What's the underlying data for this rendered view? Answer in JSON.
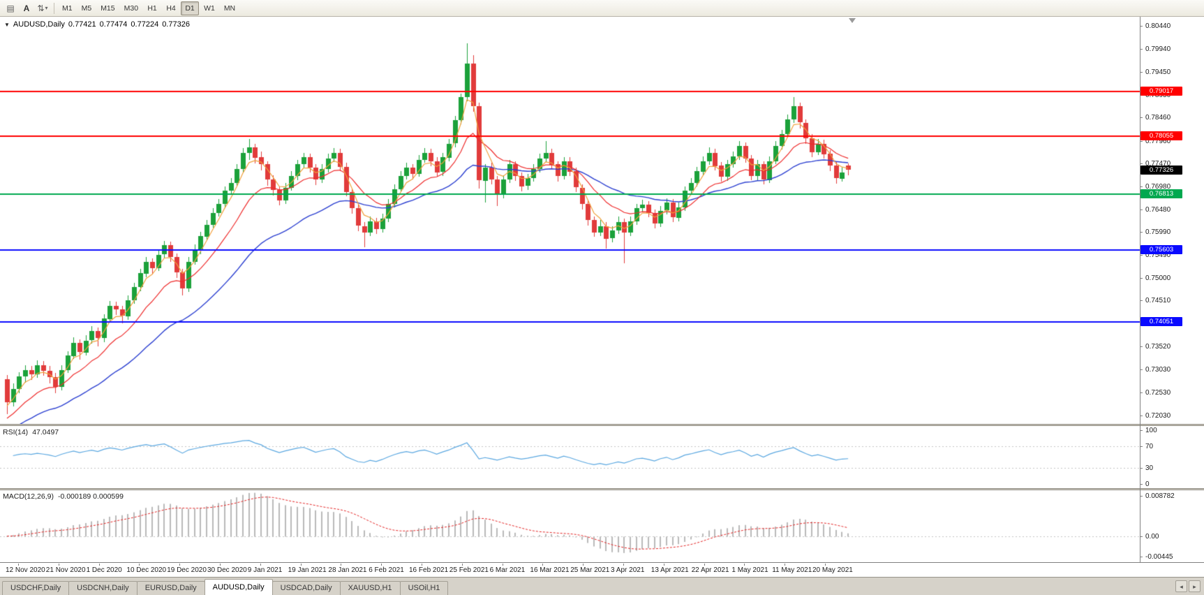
{
  "toolbar": {
    "tools": [
      {
        "name": "windows-tile-icon",
        "glyph": "▤"
      },
      {
        "name": "text-annotation-icon",
        "glyph": "A",
        "letter": true
      },
      {
        "name": "scale-adjust-icon",
        "glyph": "⇅",
        "caret": "▾"
      }
    ],
    "timeframes": [
      "M1",
      "M5",
      "M15",
      "M30",
      "H1",
      "H4",
      "D1",
      "W1",
      "MN"
    ],
    "active_timeframe": "D1"
  },
  "legend": {
    "collapse_icon": "▼",
    "symbol": "AUDUSD,Daily",
    "open": "0.77421",
    "high": "0.77474",
    "low": "0.77224",
    "close": "0.77326"
  },
  "rsi_header": {
    "name": "RSI(14)",
    "value": "47.0497"
  },
  "macd_header": {
    "name": "MACD(12,26,9)",
    "values": "-0.000189 0.000599"
  },
  "tabs": {
    "items": [
      {
        "label": "USDCHF,Daily",
        "active": false
      },
      {
        "label": "USDCNH,Daily",
        "active": false
      },
      {
        "label": "EURUSD,Daily",
        "active": false
      },
      {
        "label": "AUDUSD,Daily",
        "active": true
      },
      {
        "label": "USDCAD,Daily",
        "active": false
      },
      {
        "label": "XAUUSD,H1",
        "active": false
      },
      {
        "label": "USOil,H1",
        "active": false
      }
    ],
    "scroll_left_icon": "◂",
    "scroll_right_icon": "▸"
  },
  "chart_data": {
    "type": "candlestick",
    "symbol": "AUDUSD",
    "timeframe": "Daily",
    "price_top": 0.8044,
    "price_bottom": 0.7203,
    "price_axis_labels": [
      "0.80440",
      "0.79940",
      "0.79450",
      "0.78950",
      "0.78460",
      "0.77960",
      "0.77470",
      "0.76980",
      "0.76480",
      "0.75990",
      "0.75490",
      "0.75000",
      "0.74510",
      "0.74020",
      "0.73520",
      "0.73030",
      "0.72530",
      "0.72030"
    ],
    "date_labels": [
      "12 Nov 2020",
      "21 Nov 2020",
      "1 Dec 2020",
      "10 Dec 2020",
      "19 Dec 2020",
      "30 Dec 2020",
      "9 Jan 2021",
      "19 Jan 2021",
      "28 Jan 2021",
      "6 Feb 2021",
      "16 Feb 2021",
      "25 Feb 2021",
      "6 Mar 2021",
      "16 Mar 2021",
      "25 Mar 2021",
      "3 Apr 2021",
      "13 Apr 2021",
      "22 Apr 2021",
      "1 May 2021",
      "11 May 2021",
      "20 May 2021"
    ],
    "colors": {
      "bull": "#1ba13a",
      "bear": "#e13b3b"
    },
    "moving_averages": [
      {
        "name": "ema-fast",
        "period": 4,
        "color": "#f0a03a"
      },
      {
        "name": "ema-medium",
        "period": 12,
        "color": "#ee2b2b"
      },
      {
        "name": "ema-slow",
        "period": 30,
        "color": "#2b3fd0"
      }
    ],
    "hlines": [
      {
        "value": 0.79017,
        "label": "0.79017",
        "color": "#ff0000",
        "width": 2
      },
      {
        "value": 0.78055,
        "label": "0.78055",
        "color": "#ff0000",
        "width": 2
      },
      {
        "value": 0.76813,
        "label": "0.76813",
        "color": "#00a84f",
        "width": 2
      },
      {
        "value": 0.75603,
        "label": "0.75603",
        "color": "#0a0aff",
        "width": 2
      },
      {
        "value": 0.74051,
        "label": "0.74051",
        "color": "#0a0aff",
        "width": 2
      }
    ],
    "current_price": {
      "value": 0.77326,
      "label": "0.77326",
      "color": "#000000"
    },
    "rsi": {
      "period": 14,
      "levels": [
        100,
        70,
        30,
        0
      ],
      "color": "#5aa7e0",
      "level_line_color": "#c3c3c3"
    },
    "macd": {
      "fast": 12,
      "slow": 26,
      "signal": 9,
      "axis_max": 0.008782,
      "axis_min": -0.00445,
      "axis_labels": [
        {
          "text": "0.008782",
          "value": 0.008782
        },
        {
          "text": "0.00",
          "value": 0
        },
        {
          "text": "-0.00445",
          "value": -0.00445
        }
      ],
      "hist_color": "#b9b9b9",
      "signal_color": "#e32222",
      "zero_line_color": "#c3c3c3"
    },
    "candles": [
      [
        0.7282,
        0.7291,
        0.7206,
        0.7232
      ],
      [
        0.7232,
        0.7272,
        0.7222,
        0.726
      ],
      [
        0.726,
        0.7297,
        0.7252,
        0.7287
      ],
      [
        0.7287,
        0.7312,
        0.7275,
        0.7301
      ],
      [
        0.7301,
        0.731,
        0.728,
        0.7292
      ],
      [
        0.7292,
        0.7322,
        0.7285,
        0.7312
      ],
      [
        0.7312,
        0.732,
        0.7288,
        0.73
      ],
      [
        0.73,
        0.731,
        0.7272,
        0.7286
      ],
      [
        0.7286,
        0.7295,
        0.7252,
        0.7265
      ],
      [
        0.7265,
        0.7312,
        0.7258,
        0.7301
      ],
      [
        0.7301,
        0.7342,
        0.7295,
        0.7332
      ],
      [
        0.7332,
        0.7372,
        0.7325,
        0.736
      ],
      [
        0.736,
        0.7368,
        0.7325,
        0.734
      ],
      [
        0.734,
        0.7376,
        0.7332,
        0.7365
      ],
      [
        0.7365,
        0.7396,
        0.7358,
        0.7385
      ],
      [
        0.7385,
        0.7393,
        0.7352,
        0.737
      ],
      [
        0.737,
        0.7422,
        0.7362,
        0.7412
      ],
      [
        0.7412,
        0.745,
        0.7405,
        0.744
      ],
      [
        0.744,
        0.7449,
        0.742,
        0.7432
      ],
      [
        0.7432,
        0.744,
        0.7402,
        0.7418
      ],
      [
        0.7418,
        0.7462,
        0.741,
        0.7452
      ],
      [
        0.7452,
        0.749,
        0.7445,
        0.748
      ],
      [
        0.748,
        0.752,
        0.7472,
        0.751
      ],
      [
        0.751,
        0.7545,
        0.7502,
        0.7535
      ],
      [
        0.7535,
        0.7542,
        0.7508,
        0.7522
      ],
      [
        0.7522,
        0.756,
        0.7515,
        0.755
      ],
      [
        0.755,
        0.758,
        0.7542,
        0.757
      ],
      [
        0.757,
        0.7578,
        0.7535,
        0.7545
      ],
      [
        0.7545,
        0.7552,
        0.75,
        0.7512
      ],
      [
        0.7512,
        0.752,
        0.7462,
        0.7478
      ],
      [
        0.7478,
        0.7545,
        0.747,
        0.7535
      ],
      [
        0.7535,
        0.7572,
        0.7528,
        0.756
      ],
      [
        0.756,
        0.76,
        0.7552,
        0.759
      ],
      [
        0.759,
        0.7625,
        0.7582,
        0.7615
      ],
      [
        0.7615,
        0.765,
        0.7608,
        0.764
      ],
      [
        0.764,
        0.767,
        0.7632,
        0.766
      ],
      [
        0.766,
        0.7698,
        0.7652,
        0.7688
      ],
      [
        0.7688,
        0.7715,
        0.768,
        0.7705
      ],
      [
        0.7705,
        0.7745,
        0.7698,
        0.7735
      ],
      [
        0.7735,
        0.778,
        0.7728,
        0.777
      ],
      [
        0.777,
        0.78,
        0.7755,
        0.7782
      ],
      [
        0.7782,
        0.779,
        0.7748,
        0.776
      ],
      [
        0.776,
        0.7772,
        0.7732,
        0.7745
      ],
      [
        0.7745,
        0.7752,
        0.77,
        0.7712
      ],
      [
        0.7712,
        0.7722,
        0.7678,
        0.769
      ],
      [
        0.769,
        0.7698,
        0.7658,
        0.7668
      ],
      [
        0.7668,
        0.7705,
        0.766,
        0.7695
      ],
      [
        0.7695,
        0.773,
        0.7688,
        0.772
      ],
      [
        0.772,
        0.7755,
        0.7712,
        0.7745
      ],
      [
        0.7745,
        0.777,
        0.7738,
        0.776
      ],
      [
        0.776,
        0.7768,
        0.7728,
        0.7738
      ],
      [
        0.7738,
        0.7745,
        0.77,
        0.7712
      ],
      [
        0.7712,
        0.7745,
        0.7705,
        0.7735
      ],
      [
        0.7735,
        0.7768,
        0.7728,
        0.7758
      ],
      [
        0.7758,
        0.778,
        0.775,
        0.777
      ],
      [
        0.777,
        0.7778,
        0.773,
        0.774
      ],
      [
        0.774,
        0.7748,
        0.7675,
        0.7685
      ],
      [
        0.7685,
        0.7692,
        0.764,
        0.765
      ],
      [
        0.765,
        0.7658,
        0.76,
        0.7612
      ],
      [
        0.7612,
        0.762,
        0.7565,
        0.7598
      ],
      [
        0.7598,
        0.7632,
        0.759,
        0.7622
      ],
      [
        0.7622,
        0.763,
        0.7595,
        0.7605
      ],
      [
        0.7605,
        0.7638,
        0.7598,
        0.7628
      ],
      [
        0.7628,
        0.767,
        0.762,
        0.766
      ],
      [
        0.766,
        0.7702,
        0.7652,
        0.7692
      ],
      [
        0.7692,
        0.773,
        0.7685,
        0.772
      ],
      [
        0.772,
        0.7748,
        0.7712,
        0.7738
      ],
      [
        0.7738,
        0.7745,
        0.7712,
        0.7725
      ],
      [
        0.7725,
        0.7765,
        0.7718,
        0.7755
      ],
      [
        0.7755,
        0.778,
        0.7748,
        0.777
      ],
      [
        0.777,
        0.7778,
        0.774,
        0.7752
      ],
      [
        0.7752,
        0.776,
        0.7718,
        0.7728
      ],
      [
        0.7728,
        0.777,
        0.772,
        0.776
      ],
      [
        0.776,
        0.78,
        0.7752,
        0.779
      ],
      [
        0.779,
        0.785,
        0.7782,
        0.784
      ],
      [
        0.784,
        0.7898,
        0.7832,
        0.789
      ],
      [
        0.789,
        0.8007,
        0.7882,
        0.7962
      ],
      [
        0.7962,
        0.798,
        0.7858,
        0.787
      ],
      [
        0.787,
        0.7878,
        0.7692,
        0.771
      ],
      [
        0.771,
        0.7745,
        0.7662,
        0.7738
      ],
      [
        0.7738,
        0.7748,
        0.7702,
        0.7712
      ],
      [
        0.7712,
        0.772,
        0.7655,
        0.768
      ],
      [
        0.768,
        0.7722,
        0.7672,
        0.7712
      ],
      [
        0.7712,
        0.7755,
        0.7705,
        0.7745
      ],
      [
        0.7745,
        0.7752,
        0.771,
        0.772
      ],
      [
        0.772,
        0.7728,
        0.7688,
        0.7698
      ],
      [
        0.7698,
        0.7725,
        0.769,
        0.7715
      ],
      [
        0.7715,
        0.7745,
        0.7708,
        0.7735
      ],
      [
        0.7735,
        0.7768,
        0.7728,
        0.7758
      ],
      [
        0.7758,
        0.7795,
        0.775,
        0.777
      ],
      [
        0.777,
        0.7778,
        0.7735,
        0.7745
      ],
      [
        0.7745,
        0.7752,
        0.7708,
        0.772
      ],
      [
        0.772,
        0.776,
        0.7712,
        0.7752
      ],
      [
        0.7752,
        0.776,
        0.772,
        0.773
      ],
      [
        0.773,
        0.7738,
        0.7685,
        0.7695
      ],
      [
        0.7695,
        0.7702,
        0.7648,
        0.766
      ],
      [
        0.766,
        0.7668,
        0.7612,
        0.7625
      ],
      [
        0.7625,
        0.7632,
        0.7588,
        0.7598
      ],
      [
        0.7598,
        0.7625,
        0.759,
        0.7612
      ],
      [
        0.7612,
        0.762,
        0.7562,
        0.7585
      ],
      [
        0.7585,
        0.7612,
        0.7578,
        0.7602
      ],
      [
        0.7602,
        0.7632,
        0.7595,
        0.762
      ],
      [
        0.762,
        0.7628,
        0.7532,
        0.7598
      ],
      [
        0.7598,
        0.7632,
        0.759,
        0.7622
      ],
      [
        0.7622,
        0.766,
        0.7615,
        0.765
      ],
      [
        0.765,
        0.7668,
        0.7642,
        0.7658
      ],
      [
        0.7658,
        0.7665,
        0.763,
        0.764
      ],
      [
        0.764,
        0.7648,
        0.7608,
        0.7618
      ],
      [
        0.7618,
        0.7655,
        0.761,
        0.7645
      ],
      [
        0.7645,
        0.7672,
        0.7638,
        0.7662
      ],
      [
        0.7662,
        0.767,
        0.762,
        0.763
      ],
      [
        0.763,
        0.7662,
        0.7622,
        0.7652
      ],
      [
        0.7652,
        0.7698,
        0.7645,
        0.7688
      ],
      [
        0.7688,
        0.7715,
        0.768,
        0.7705
      ],
      [
        0.7705,
        0.774,
        0.7698,
        0.773
      ],
      [
        0.773,
        0.7762,
        0.7722,
        0.7752
      ],
      [
        0.7752,
        0.7782,
        0.7745,
        0.777
      ],
      [
        0.777,
        0.7778,
        0.7732,
        0.7742
      ],
      [
        0.7742,
        0.775,
        0.7708,
        0.7718
      ],
      [
        0.7718,
        0.7755,
        0.771,
        0.7745
      ],
      [
        0.7745,
        0.7772,
        0.7738,
        0.7762
      ],
      [
        0.7762,
        0.7795,
        0.7755,
        0.7785
      ],
      [
        0.7785,
        0.7792,
        0.7748,
        0.7758
      ],
      [
        0.7758,
        0.7765,
        0.771,
        0.772
      ],
      [
        0.772,
        0.7755,
        0.7712,
        0.7745
      ],
      [
        0.7745,
        0.7752,
        0.7702,
        0.7712
      ],
      [
        0.7712,
        0.7762,
        0.7705,
        0.7752
      ],
      [
        0.7752,
        0.7795,
        0.7745,
        0.7785
      ],
      [
        0.7785,
        0.782,
        0.7778,
        0.781
      ],
      [
        0.781,
        0.7852,
        0.7802,
        0.7842
      ],
      [
        0.7842,
        0.7891,
        0.7835,
        0.787
      ],
      [
        0.787,
        0.7878,
        0.7822,
        0.7835
      ],
      [
        0.7835,
        0.7842,
        0.779,
        0.7802
      ],
      [
        0.7802,
        0.781,
        0.776,
        0.7772
      ],
      [
        0.7772,
        0.78,
        0.7765,
        0.779
      ],
      [
        0.779,
        0.7798,
        0.7758,
        0.7768
      ],
      [
        0.7768,
        0.7775,
        0.773,
        0.7742
      ],
      [
        0.7742,
        0.775,
        0.7703,
        0.7715
      ],
      [
        0.7715,
        0.7738,
        0.7708,
        0.7728
      ],
      [
        0.77421,
        0.77474,
        0.77224,
        0.77326
      ]
    ]
  }
}
